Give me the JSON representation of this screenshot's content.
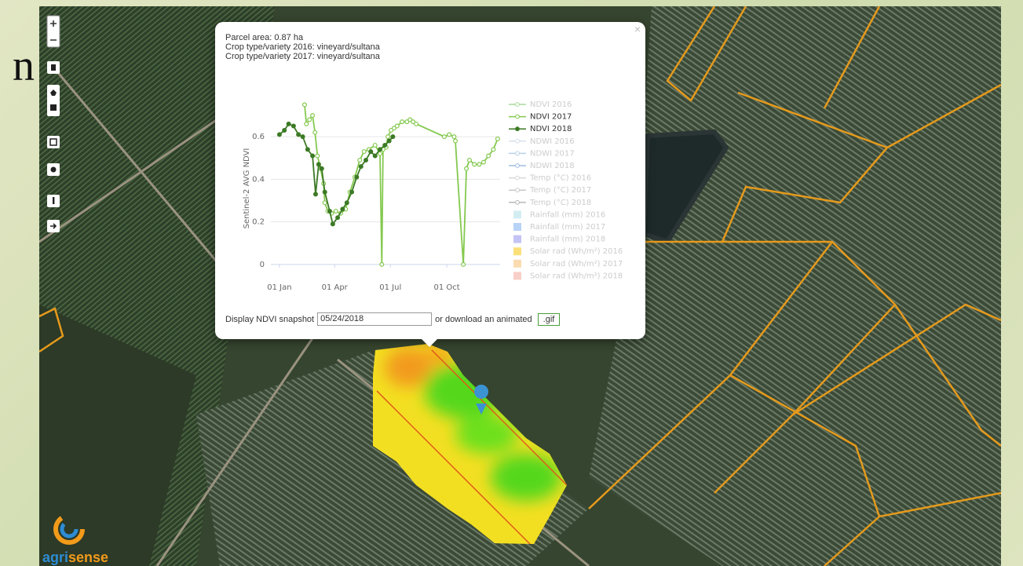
{
  "slide": {
    "text": "n"
  },
  "popup": {
    "close": "×",
    "lines": [
      "Parcel area: 0.87 ha",
      "Crop type/variety 2016: vineyard/sultana",
      "Crop type/variety 2017: vineyard/sultana"
    ],
    "snapshot_label": "Display NDVI snapshot",
    "snapshot_date": "05/24/2018",
    "download_label": "or download an animated",
    "gif_button": ".gif"
  },
  "logo": {
    "part1": "agri",
    "part2": "sense"
  },
  "chart_data": {
    "type": "line",
    "y_label": "Sentinel-2 AVG NDVI",
    "xlim": [
      -14,
      360
    ],
    "ylim": [
      -0.03,
      0.77
    ],
    "xticks": [
      {
        "value": 0,
        "label": "01 Jan"
      },
      {
        "value": 90,
        "label": "01 Apr"
      },
      {
        "value": 181,
        "label": "01 Jul"
      },
      {
        "value": 273,
        "label": "01 Oct"
      }
    ],
    "yticks": [
      0,
      0.2,
      0.4,
      0.6
    ],
    "grid": true,
    "series": [
      {
        "name": "NDVI 2016",
        "color": "#a9d99b",
        "marker": "line",
        "visible": false
      },
      {
        "name": "NDVI 2017",
        "color": "#84c94f",
        "marker": "line",
        "visible": true,
        "x": [
          41,
          44,
          49,
          54,
          58,
          62,
          67,
          72,
          74,
          79,
          85,
          92,
          100,
          108,
          115,
          123,
          131,
          138,
          146,
          156,
          164,
          167,
          169,
          174,
          177,
          182,
          187,
          192,
          200,
          208,
          213,
          218,
          223,
          269,
          277,
          285,
          287,
          300,
          305,
          310,
          318,
          326,
          333,
          341,
          349,
          356
        ],
        "values": [
          0.75,
          0.66,
          0.68,
          0.7,
          0.62,
          0.51,
          0.45,
          0.38,
          0.29,
          0.25,
          0.24,
          0.25,
          0.24,
          0.26,
          0.34,
          0.41,
          0.49,
          0.53,
          0.54,
          0.56,
          0.52,
          0,
          0.54,
          0.55,
          0.6,
          0.63,
          0.64,
          0.65,
          0.67,
          0.67,
          0.68,
          0.67,
          0.66,
          0.6,
          0.61,
          0.6,
          0.58,
          0,
          0.45,
          0.49,
          0.47,
          0.47,
          0.48,
          0.51,
          0.54,
          0.59
        ]
      },
      {
        "name": "NDVI 2018",
        "color": "#3c7a25",
        "marker": "line",
        "visible": true,
        "x": [
          0,
          8,
          15,
          23,
          31,
          38,
          46,
          54,
          59,
          64,
          69,
          74,
          82,
          87,
          95,
          103,
          110,
          118,
          126,
          133,
          141,
          149,
          156,
          164,
          172,
          179,
          185
        ],
        "values": [
          0.61,
          0.63,
          0.66,
          0.65,
          0.61,
          0.6,
          0.54,
          0.51,
          0.33,
          0.47,
          0.45,
          0.34,
          0.25,
          0.19,
          0.22,
          0.26,
          0.29,
          0.34,
          0.41,
          0.46,
          0.49,
          0.53,
          0.51,
          0.54,
          0.56,
          0.58,
          0.6
        ]
      },
      {
        "name": "NDWI 2016",
        "color": "#d6e1ec",
        "marker": "line",
        "visible": false
      },
      {
        "name": "NDWI 2017",
        "color": "#b9d0e6",
        "marker": "line",
        "visible": false
      },
      {
        "name": "NDWI 2018",
        "color": "#9fbde0",
        "marker": "line",
        "visible": false
      },
      {
        "name": "Temp (°C) 2016",
        "color": "#d8d8d8",
        "marker": "line",
        "visible": false
      },
      {
        "name": "Temp (°C) 2017",
        "color": "#c8c8c8",
        "marker": "line",
        "visible": false
      },
      {
        "name": "Temp (°C) 2018",
        "color": "#b8b8b8",
        "marker": "line",
        "visible": false
      },
      {
        "name": "Rainfall (mm) 2016",
        "color": "#d3eef3",
        "marker": "square",
        "visible": false
      },
      {
        "name": "Rainfall (mm) 2017",
        "color": "#b7d3f7",
        "marker": "square",
        "visible": false
      },
      {
        "name": "Rainfall (mm) 2018",
        "color": "#c3c3f5",
        "marker": "square",
        "visible": false
      },
      {
        "name": "Solar rad (Wh/m²) 2016",
        "color": "#fbe07a",
        "marker": "square",
        "visible": false
      },
      {
        "name": "Solar rad (Wh/m²) 2017",
        "color": "#fbdcb0",
        "marker": "square",
        "visible": false
      },
      {
        "name": "Solar rad (Wh/m²) 2018",
        "color": "#f8cfc8",
        "marker": "square",
        "visible": false
      }
    ]
  }
}
